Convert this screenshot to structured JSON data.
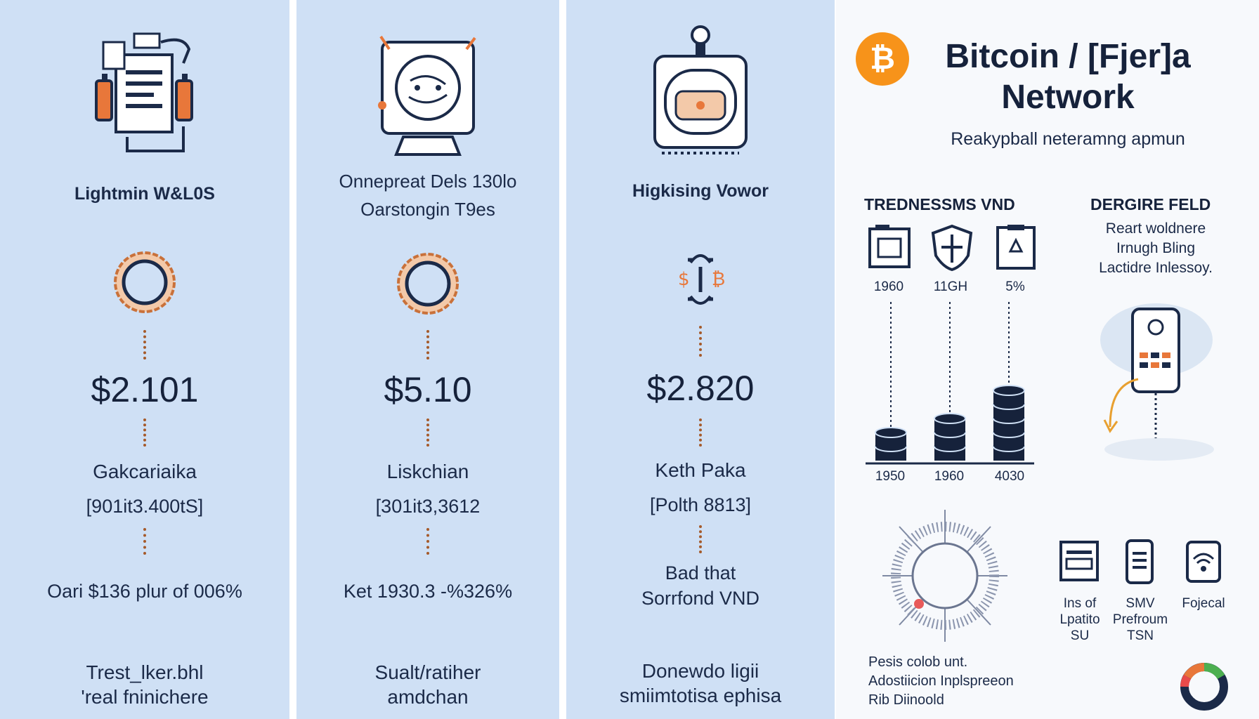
{
  "columns": [
    {
      "title": "Lightmin W&L0S",
      "price": "$2.101",
      "name": "Gakcariaika",
      "code": "[901it3.400tS]",
      "stat": "Oari $136 plur of 006%",
      "footer": [
        "Trest_lker.bhl",
        "'real fninichere"
      ],
      "icon": "battery-document-icon",
      "ring_icon": "coin-ring-icon"
    },
    {
      "subtitle": [
        "Onnepreat Dels 130lo",
        "Oarstongin T9es"
      ],
      "price": "$5.10",
      "name": "Liskchian",
      "code": "[301it3,3612",
      "stat": "Ket 1930.3 -%326%",
      "footer": [
        "Sualt/ratiher",
        "amdchan"
      ],
      "icon": "globe-device-icon",
      "ring_icon": "coin-ring-icon"
    },
    {
      "title": "Higkising Vowor",
      "price": "$2.820",
      "name": "Keth Paka",
      "code": "[Polth 8813]",
      "stat": [
        "Bad that",
        "Sorrfond VND"
      ],
      "footer": [
        "Donewdo ligii",
        "smiimtotisa ephisa"
      ],
      "icon": "lock-safe-icon",
      "ring_icon": "exchange-icon"
    }
  ],
  "right": {
    "title": [
      "Bitcoin / [Fjer]a",
      "Network"
    ],
    "logo_symbol": "₿",
    "subtitle": "Reakypball neteramng apmun",
    "trends": {
      "heading": "TREDNESSMS VND",
      "items": [
        {
          "value": "1960",
          "icon": "wallet-icon"
        },
        {
          "value": "11GH",
          "icon": "shield-icon"
        },
        {
          "value": "5%",
          "icon": "document-icon"
        }
      ],
      "bars": [
        {
          "label": "1950",
          "level": 2
        },
        {
          "label": "1960",
          "level": 3
        },
        {
          "label": "4030",
          "level": 5
        }
      ]
    },
    "degree": {
      "heading": "DERGIRE FELD",
      "text": [
        "Reart woldnere",
        "Irnugh Bling",
        "Lactidre Inlessoy."
      ],
      "icon": "phone-cloud-icon"
    },
    "bottom_icons": [
      {
        "label": [
          "Ins of",
          "Lpatito",
          "SU"
        ],
        "icon": "card-icon"
      },
      {
        "label": [
          "SMV",
          "Prefroum",
          "TSN"
        ],
        "icon": "mobile-icon"
      },
      {
        "label": [
          "Fojecal"
        ],
        "icon": "wifi-icon"
      }
    ],
    "footnote": [
      "Pesis colob unt.",
      "Adostiicion Inplspreeon",
      "Rib Diinoold"
    ]
  },
  "colors": {
    "panel": "#cfe0f5",
    "accent": "#e8773a",
    "navy": "#16223b",
    "bitcoin": "#f7931a"
  }
}
